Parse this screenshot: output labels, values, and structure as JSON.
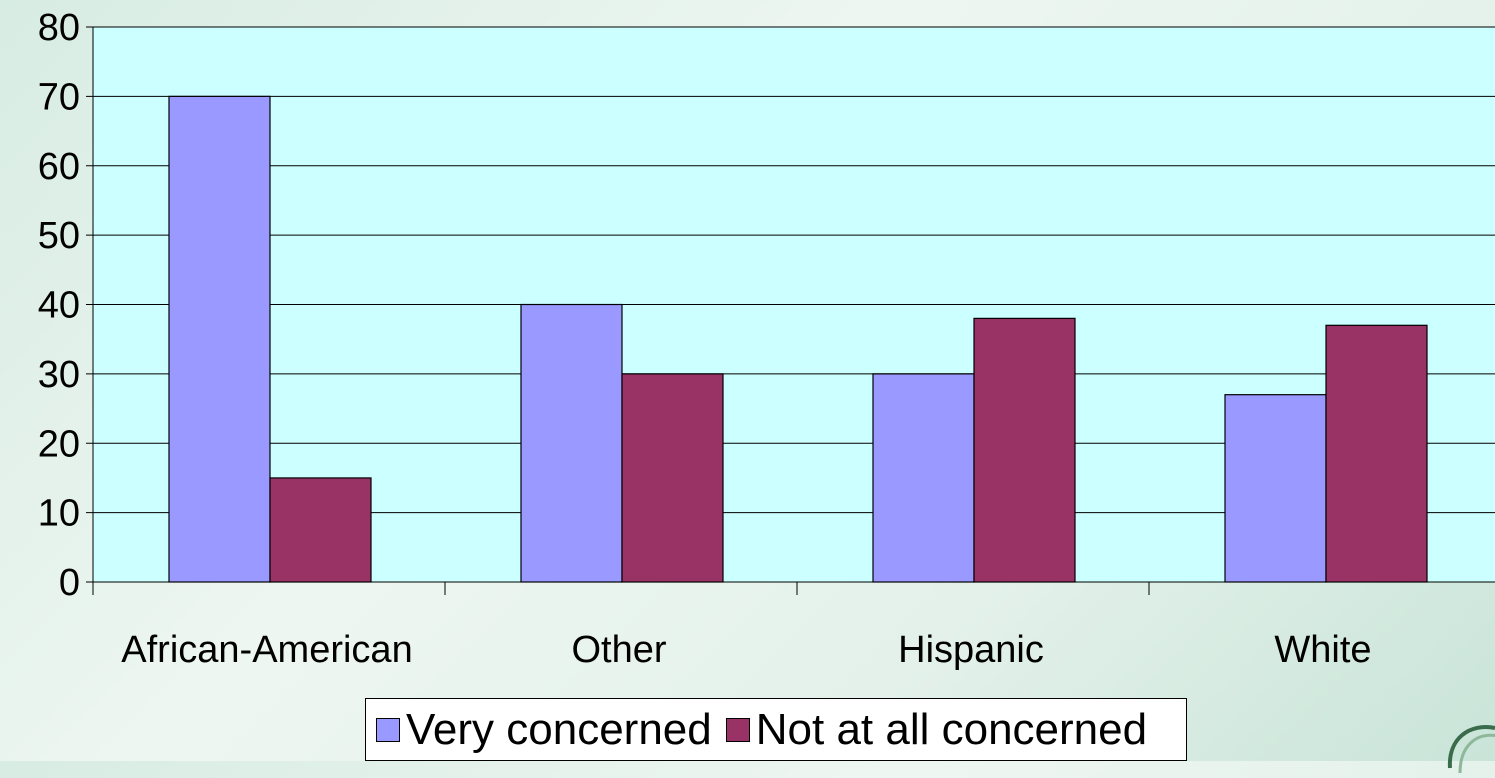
{
  "chart_data": {
    "type": "bar",
    "categories": [
      "African-American",
      "Other",
      "Hispanic",
      "White"
    ],
    "series": [
      {
        "name": "Very concerned",
        "values": [
          70,
          40,
          30,
          27
        ],
        "color": "#9999ff"
      },
      {
        "name": "Not at all concerned",
        "values": [
          15,
          30,
          38,
          37
        ],
        "color": "#993366"
      }
    ],
    "ylim": [
      0,
      80
    ],
    "yticks": [
      0,
      10,
      20,
      30,
      40,
      50,
      60,
      70,
      80
    ],
    "grid": true,
    "plot_background": "#ccffff",
    "legend_position": "bottom"
  }
}
